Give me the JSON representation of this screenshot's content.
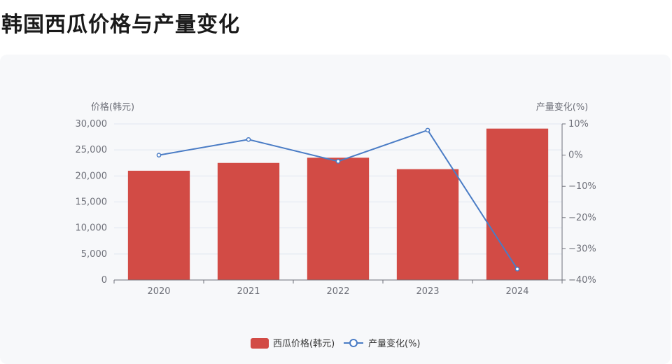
{
  "page": {
    "title": "韩国西瓜价格与产量变化"
  },
  "chart_data": {
    "type": "bar",
    "categories": [
      "2020",
      "2021",
      "2022",
      "2023",
      "2024"
    ],
    "series": [
      {
        "name": "西瓜价格(韩元)",
        "type": "bar",
        "axis": "left",
        "color": "#d24b45",
        "values": [
          21000,
          22500,
          23500,
          21300,
          29100
        ]
      },
      {
        "name": "产量变化(%)",
        "type": "line",
        "axis": "right",
        "color": "#4a7cc5",
        "values": [
          0,
          5,
          -2,
          8,
          -36.5
        ]
      }
    ],
    "y_left": {
      "label": "价格(韩元)",
      "ylim": [
        0,
        30000
      ],
      "ticks": [
        0,
        5000,
        10000,
        15000,
        20000,
        25000,
        30000
      ],
      "tick_labels": [
        "0",
        "5,000",
        "10,000",
        "15,000",
        "20,000",
        "25,000",
        "30,000"
      ]
    },
    "y_right": {
      "label": "产量变化(%)",
      "ylim": [
        -40,
        10
      ],
      "ticks": [
        -40,
        -30,
        -20,
        -10,
        0,
        10
      ],
      "tick_labels": [
        "−40%",
        "−30%",
        "−20%",
        "−10%",
        "0%",
        "10%"
      ]
    },
    "grid": true,
    "legend_position": "bottom-center"
  }
}
